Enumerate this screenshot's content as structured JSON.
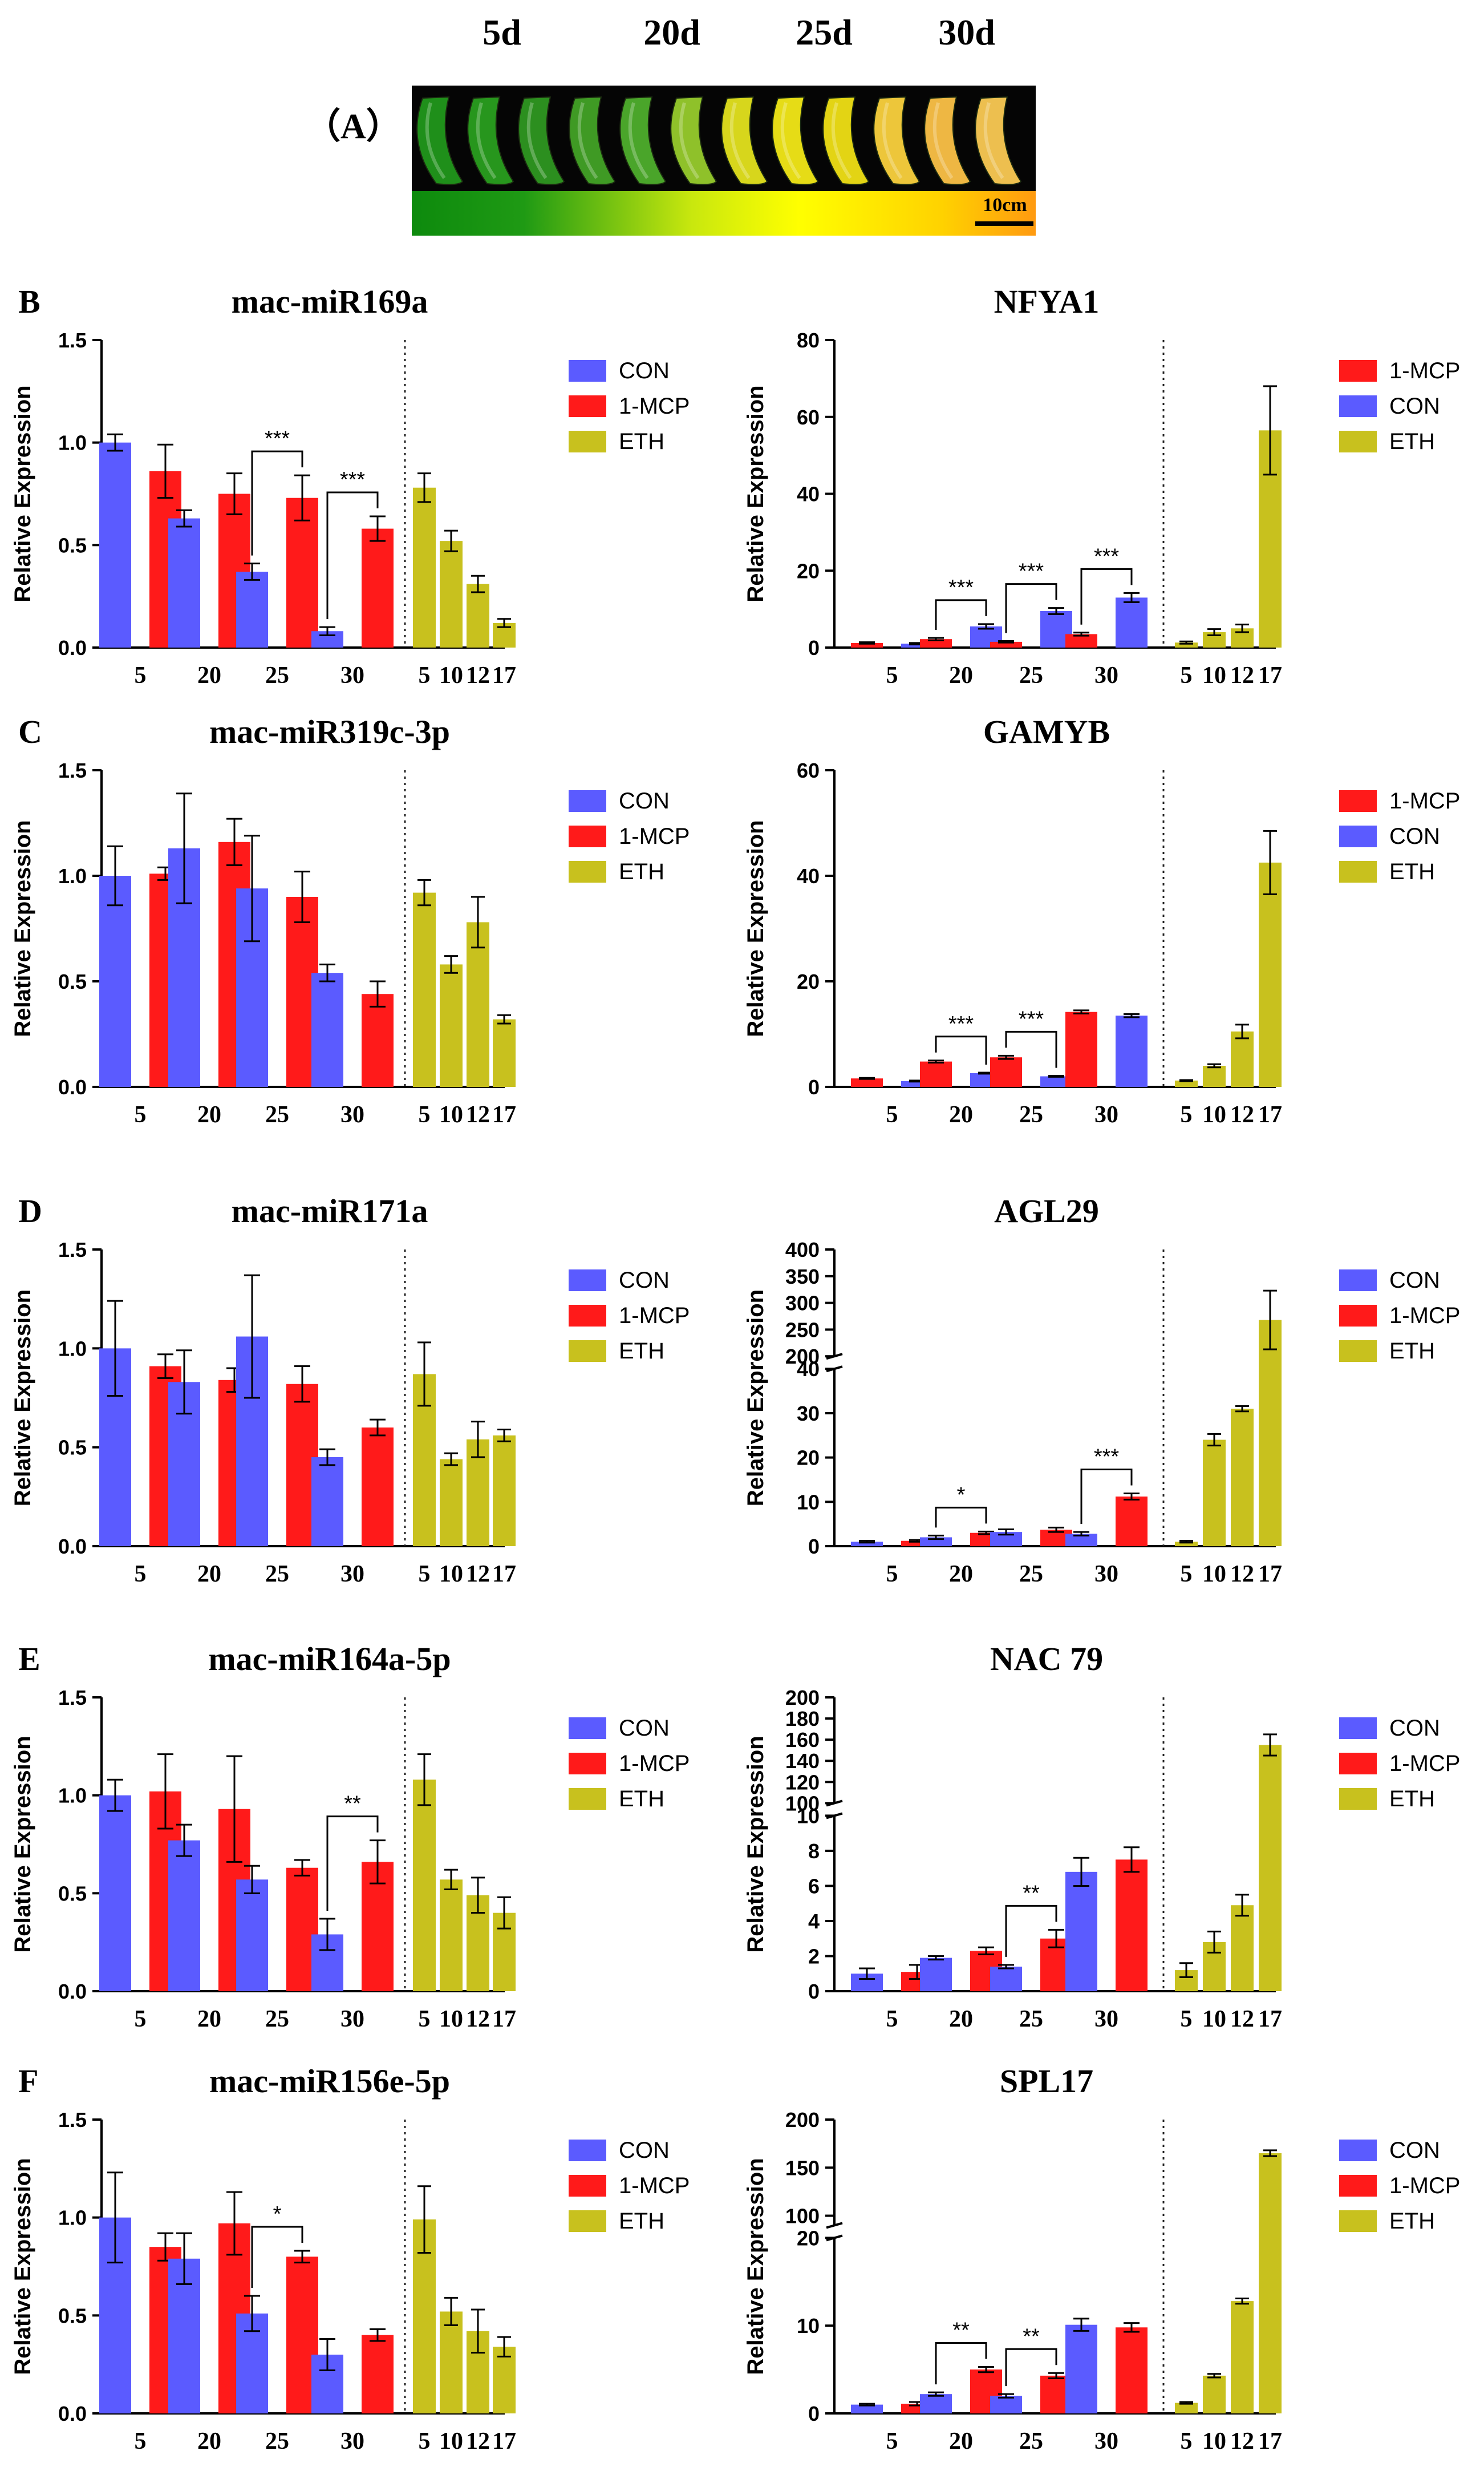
{
  "colors": {
    "con": "#5b5bff",
    "mcp": "#ff1a1a",
    "eth": "#c8c11e",
    "axis": "#000000",
    "sig": "#000000"
  },
  "panel_a": {
    "label": "（A）",
    "day_labels": [
      "5d",
      "20d",
      "25d",
      "30d"
    ],
    "scale_label": "10cm"
  },
  "chart_data": [
    {
      "panel": "B",
      "type": "bar",
      "title": "mac-miR169a",
      "ylabel": "Relative Expression",
      "ylim": [
        0,
        1.5
      ],
      "yticks": [
        "0.0",
        "0.5",
        "1.0",
        "1.5"
      ],
      "legend": [
        "CON",
        "1-MCP",
        "ETH"
      ],
      "left_order": [
        "CON",
        "1-MCP"
      ],
      "groups": [
        "5",
        "20",
        "25",
        "30"
      ],
      "eth_ticks": [
        "5",
        "10",
        "12",
        "17"
      ],
      "values": [
        [
          1.0,
          0.86
        ],
        [
          0.63,
          0.75
        ],
        [
          0.37,
          0.73
        ],
        [
          0.08,
          0.58
        ]
      ],
      "errors": [
        [
          0.04,
          0.13
        ],
        [
          0.04,
          0.1
        ],
        [
          0.04,
          0.11
        ],
        [
          0.02,
          0.06
        ]
      ],
      "eth_values": [
        0.78,
        0.52,
        0.31,
        0.12
      ],
      "eth_errors": [
        0.07,
        0.05,
        0.04,
        0.02
      ],
      "sig": [
        {
          "group": 2,
          "label": "***"
        },
        {
          "group": 3,
          "label": "***"
        }
      ]
    },
    {
      "panel": "",
      "type": "bar",
      "title": "NFYA1",
      "ylabel": "Relative Expression",
      "ylim": [
        0,
        80
      ],
      "yticks": [
        "0",
        "20",
        "40",
        "60",
        "80"
      ],
      "legend": [
        "1-MCP",
        "CON",
        "ETH"
      ],
      "left_order": [
        "1-MCP",
        "CON"
      ],
      "groups": [
        "5",
        "20",
        "25",
        "30"
      ],
      "eth_ticks": [
        "5",
        "10",
        "12",
        "17"
      ],
      "values": [
        [
          1.2,
          1.0
        ],
        [
          2.2,
          5.5
        ],
        [
          1.5,
          9.5
        ],
        [
          3.5,
          13.0
        ]
      ],
      "errors": [
        [
          0.2,
          0.2
        ],
        [
          0.3,
          0.6
        ],
        [
          0.2,
          0.8
        ],
        [
          0.4,
          1.2
        ]
      ],
      "eth_values": [
        1.3,
        4.0,
        5.0,
        56.5
      ],
      "eth_errors": [
        0.3,
        0.8,
        1.0,
        11.5
      ],
      "sig": [
        {
          "group": 1,
          "label": "***"
        },
        {
          "group": 2,
          "label": "***"
        },
        {
          "group": 3,
          "label": "***"
        }
      ]
    },
    {
      "panel": "C",
      "type": "bar",
      "title": "mac-miR319c-3p",
      "ylabel": "Relative Expression",
      "ylim": [
        0,
        1.5
      ],
      "yticks": [
        "0.0",
        "0.5",
        "1.0",
        "1.5"
      ],
      "legend": [
        "CON",
        "1-MCP",
        "ETH"
      ],
      "left_order": [
        "CON",
        "1-MCP"
      ],
      "groups": [
        "5",
        "20",
        "25",
        "30"
      ],
      "eth_ticks": [
        "5",
        "10",
        "12",
        "17"
      ],
      "values": [
        [
          1.0,
          1.01
        ],
        [
          1.13,
          1.16
        ],
        [
          0.94,
          0.9
        ],
        [
          0.54,
          0.44
        ]
      ],
      "errors": [
        [
          0.14,
          0.03
        ],
        [
          0.26,
          0.11
        ],
        [
          0.25,
          0.12
        ],
        [
          0.04,
          0.06
        ]
      ],
      "eth_values": [
        0.92,
        0.58,
        0.78,
        0.32
      ],
      "eth_errors": [
        0.06,
        0.04,
        0.12,
        0.02
      ],
      "sig": []
    },
    {
      "panel": "",
      "type": "bar",
      "title": "GAMYB",
      "ylabel": "Relative Expression",
      "ylim": [
        0,
        60
      ],
      "yticks": [
        "0",
        "20",
        "40",
        "60"
      ],
      "legend": [
        "1-MCP",
        "CON",
        "ETH"
      ],
      "left_order": [
        "1-MCP",
        "CON"
      ],
      "groups": [
        "5",
        "20",
        "25",
        "30"
      ],
      "eth_ticks": [
        "5",
        "10",
        "12",
        "17"
      ],
      "values": [
        [
          1.6,
          1.1
        ],
        [
          4.8,
          2.6
        ],
        [
          5.6,
          2.0
        ],
        [
          14.2,
          13.5
        ]
      ],
      "errors": [
        [
          0.1,
          0.1
        ],
        [
          0.2,
          0.1
        ],
        [
          0.3,
          0.1
        ],
        [
          0.3,
          0.3
        ]
      ],
      "eth_values": [
        1.2,
        4.0,
        10.5,
        42.5
      ],
      "eth_errors": [
        0.1,
        0.3,
        1.3,
        6.0
      ],
      "sig": [
        {
          "group": 1,
          "label": "***"
        },
        {
          "group": 2,
          "label": "***"
        }
      ]
    },
    {
      "panel": "D",
      "type": "bar",
      "title": "mac-miR171a",
      "ylabel": "Relative Expression",
      "ylim": [
        0,
        1.5
      ],
      "yticks": [
        "0.0",
        "0.5",
        "1.0",
        "1.5"
      ],
      "legend": [
        "CON",
        "1-MCP",
        "ETH"
      ],
      "left_order": [
        "CON",
        "1-MCP"
      ],
      "groups": [
        "5",
        "20",
        "25",
        "30"
      ],
      "eth_ticks": [
        "5",
        "10",
        "12",
        "17"
      ],
      "values": [
        [
          1.0,
          0.91
        ],
        [
          0.83,
          0.84
        ],
        [
          1.06,
          0.82
        ],
        [
          0.45,
          0.6
        ]
      ],
      "errors": [
        [
          0.24,
          0.06
        ],
        [
          0.16,
          0.06
        ],
        [
          0.31,
          0.09
        ],
        [
          0.04,
          0.04
        ]
      ],
      "eth_values": [
        0.87,
        0.44,
        0.54,
        0.56
      ],
      "eth_errors": [
        0.16,
        0.03,
        0.09,
        0.03
      ],
      "sig": []
    },
    {
      "panel": "",
      "type": "bar",
      "title": "AGL29",
      "ylabel": "Relative Expression",
      "broken": true,
      "lower_ylim": [
        0,
        40
      ],
      "lower_yticks": [
        "0",
        "10",
        "20",
        "30",
        "40"
      ],
      "upper_ylim": [
        200,
        400
      ],
      "upper_yticks": [
        "200",
        "250",
        "300",
        "350",
        "400"
      ],
      "legend": [
        "CON",
        "1-MCP",
        "ETH"
      ],
      "left_order": [
        "CON",
        "1-MCP"
      ],
      "groups": [
        "5",
        "20",
        "25",
        "30"
      ],
      "eth_ticks": [
        "5",
        "10",
        "12",
        "17"
      ],
      "values": [
        [
          1.0,
          1.2
        ],
        [
          2.0,
          3.0
        ],
        [
          3.2,
          3.7
        ],
        [
          2.8,
          11.2
        ]
      ],
      "errors": [
        [
          0.2,
          0.2
        ],
        [
          0.4,
          0.3
        ],
        [
          0.6,
          0.5
        ],
        [
          0.4,
          0.7
        ]
      ],
      "eth_values": [
        1.0,
        24.0,
        31.0,
        268.0
      ],
      "eth_errors": [
        0.2,
        1.3,
        0.6,
        55.0
      ],
      "sig": [
        {
          "group": 1,
          "label": "*"
        },
        {
          "group": 3,
          "label": "***"
        }
      ]
    },
    {
      "panel": "E",
      "type": "bar",
      "title": "mac-miR164a-5p",
      "ylabel": "Relative Expression",
      "ylim": [
        0,
        1.5
      ],
      "yticks": [
        "0.0",
        "0.5",
        "1.0",
        "1.5"
      ],
      "legend": [
        "CON",
        "1-MCP",
        "ETH"
      ],
      "left_order": [
        "CON",
        "1-MCP"
      ],
      "groups": [
        "5",
        "20",
        "25",
        "30"
      ],
      "eth_ticks": [
        "5",
        "10",
        "12",
        "17"
      ],
      "values": [
        [
          1.0,
          1.02
        ],
        [
          0.77,
          0.93
        ],
        [
          0.57,
          0.63
        ],
        [
          0.29,
          0.66
        ]
      ],
      "errors": [
        [
          0.08,
          0.19
        ],
        [
          0.08,
          0.27
        ],
        [
          0.07,
          0.04
        ],
        [
          0.08,
          0.11
        ]
      ],
      "eth_values": [
        1.08,
        0.57,
        0.49,
        0.4
      ],
      "eth_errors": [
        0.13,
        0.05,
        0.09,
        0.08
      ],
      "sig": [
        {
          "group": 3,
          "label": "**"
        }
      ]
    },
    {
      "panel": "",
      "type": "bar",
      "title": "NAC 79",
      "ylabel": "Relative Expression",
      "broken": true,
      "lower_ylim": [
        0,
        10
      ],
      "lower_yticks": [
        "0",
        "2",
        "4",
        "6",
        "8",
        "10"
      ],
      "upper_ylim": [
        100,
        200
      ],
      "upper_yticks": [
        "100",
        "120",
        "140",
        "160",
        "180",
        "200"
      ],
      "legend": [
        "CON",
        "1-MCP",
        "ETH"
      ],
      "left_order": [
        "CON",
        "1-MCP"
      ],
      "groups": [
        "5",
        "20",
        "25",
        "30"
      ],
      "eth_ticks": [
        "5",
        "10",
        "12",
        "17"
      ],
      "values": [
        [
          1.0,
          1.1
        ],
        [
          1.9,
          2.3
        ],
        [
          1.4,
          3.0
        ],
        [
          6.8,
          7.5
        ]
      ],
      "errors": [
        [
          0.3,
          0.4
        ],
        [
          0.1,
          0.2
        ],
        [
          0.1,
          0.5
        ],
        [
          0.8,
          0.7
        ]
      ],
      "eth_values": [
        1.2,
        2.8,
        4.9,
        155.0
      ],
      "eth_errors": [
        0.4,
        0.6,
        0.6,
        10.0
      ],
      "sig": [
        {
          "group": 2,
          "label": "**"
        }
      ]
    },
    {
      "panel": "F",
      "type": "bar",
      "title": "mac-miR156e-5p",
      "ylabel": "Relative Expression",
      "ylim": [
        0,
        1.5
      ],
      "yticks": [
        "0.0",
        "0.5",
        "1.0",
        "1.5"
      ],
      "legend": [
        "CON",
        "1-MCP",
        "ETH"
      ],
      "left_order": [
        "CON",
        "1-MCP"
      ],
      "groups": [
        "5",
        "20",
        "25",
        "30"
      ],
      "eth_ticks": [
        "5",
        "10",
        "12",
        "17"
      ],
      "values": [
        [
          1.0,
          0.85
        ],
        [
          0.79,
          0.97
        ],
        [
          0.51,
          0.8
        ],
        [
          0.3,
          0.4
        ]
      ],
      "errors": [
        [
          0.23,
          0.07
        ],
        [
          0.13,
          0.16
        ],
        [
          0.09,
          0.03
        ],
        [
          0.08,
          0.03
        ]
      ],
      "eth_values": [
        0.99,
        0.52,
        0.42,
        0.34
      ],
      "eth_errors": [
        0.17,
        0.07,
        0.11,
        0.05
      ],
      "sig": [
        {
          "group": 2,
          "label": "*"
        }
      ]
    },
    {
      "panel": "",
      "type": "bar",
      "title": "SPL17",
      "ylabel": "Relative Expression",
      "broken": true,
      "lower_ylim": [
        0,
        20
      ],
      "lower_yticks": [
        "0",
        "10",
        "20"
      ],
      "upper_ylim": [
        90,
        200
      ],
      "upper_yticks": [
        "100",
        "150",
        "200"
      ],
      "legend": [
        "CON",
        "1-MCP",
        "ETH"
      ],
      "left_order": [
        "CON",
        "1-MCP"
      ],
      "groups": [
        "5",
        "20",
        "25",
        "30"
      ],
      "eth_ticks": [
        "5",
        "10",
        "12",
        "17"
      ],
      "values": [
        [
          1.0,
          1.1
        ],
        [
          2.2,
          5.0
        ],
        [
          2.0,
          4.3
        ],
        [
          10.1,
          9.8
        ]
      ],
      "errors": [
        [
          0.1,
          0.2
        ],
        [
          0.2,
          0.3
        ],
        [
          0.2,
          0.3
        ],
        [
          0.7,
          0.5
        ]
      ],
      "eth_values": [
        1.2,
        4.3,
        12.8,
        165.0
      ],
      "eth_errors": [
        0.1,
        0.2,
        0.3,
        3.0
      ],
      "sig": [
        {
          "group": 1,
          "label": "**"
        },
        {
          "group": 2,
          "label": "**"
        }
      ]
    }
  ]
}
